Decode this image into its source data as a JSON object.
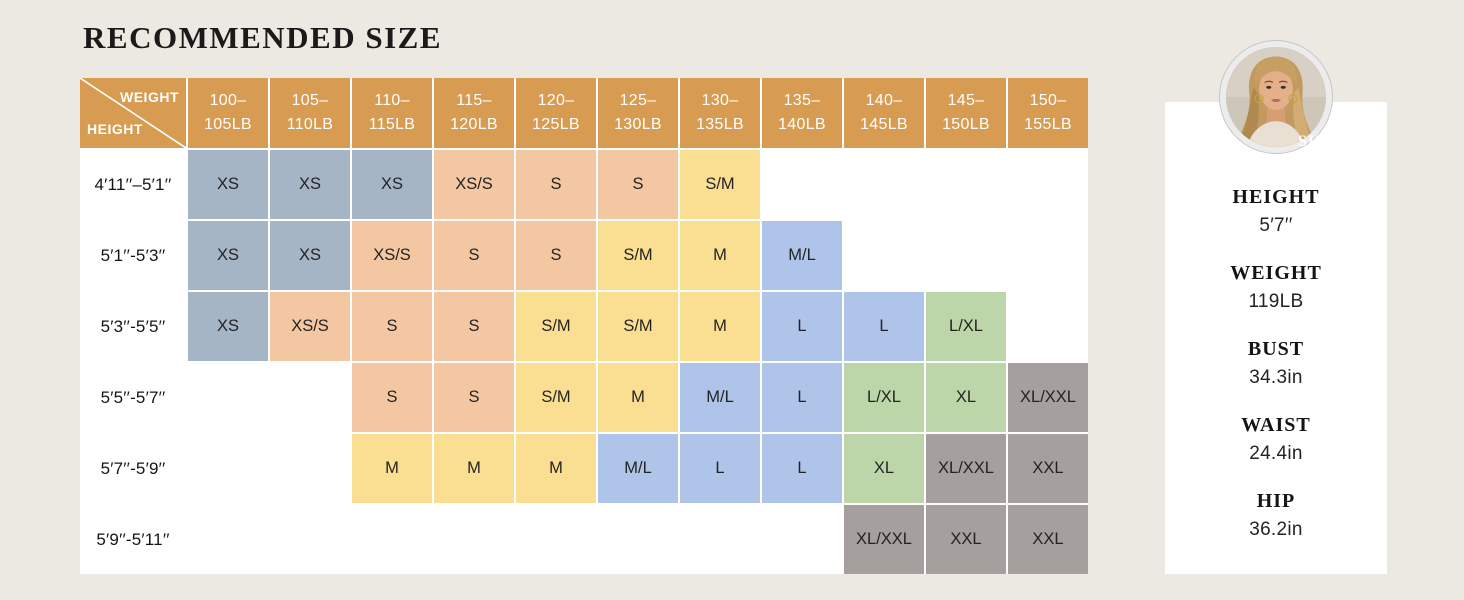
{
  "page_title": "RECOMMENDED SIZE",
  "chart_data": {
    "type": "heatmap",
    "title": "RECOMMENDED SIZE",
    "x_axis_label": "WEIGHT",
    "y_axis_label": "HEIGHT",
    "columns": [
      "100–105LB",
      "105–110LB",
      "110–115LB",
      "115–120LB",
      "120–125LB",
      "125–130LB",
      "130–135LB",
      "135–140LB",
      "140–145LB",
      "145–150LB",
      "150–155LB"
    ],
    "rows": [
      "4′11′′–5′1′′",
      "5′1′′-5′3′′",
      "5′3′′-5′5′′",
      "5′5′′-5′7′′",
      "5′7′′-5′9′′",
      "5′9′′-5′11′′"
    ],
    "values": [
      [
        "XS",
        "XS",
        "XS",
        "XS/S",
        "S",
        "S",
        "S/M",
        null,
        null,
        null,
        null
      ],
      [
        "XS",
        "XS",
        "XS/S",
        "S",
        "S",
        "S/M",
        "M",
        "M/L",
        null,
        null,
        null
      ],
      [
        "XS",
        "XS/S",
        "S",
        "S",
        "S/M",
        "S/M",
        "M",
        "L",
        "L",
        "L/XL",
        null
      ],
      [
        null,
        null,
        "S",
        "S",
        "S/M",
        "M",
        "M/L",
        "L",
        "L/XL",
        "XL",
        "XL/XXL"
      ],
      [
        null,
        null,
        "M",
        "M",
        "M",
        "M/L",
        "L",
        "L",
        "XL",
        "XL/XXL",
        "XXL"
      ],
      [
        null,
        null,
        null,
        null,
        null,
        null,
        null,
        null,
        "XL/XXL",
        "XXL",
        "XXL"
      ]
    ],
    "size_color_map": {
      "XS": "bluegray",
      "XS/S": "peach",
      "S": "peach",
      "S/M": "yellow",
      "M": "yellow",
      "M/L": "periwinkle",
      "L": "periwinkle",
      "L/XL": "green",
      "XL": "green",
      "XL/XXL": "gray",
      "XXL": "gray"
    },
    "grid": false,
    "legend_position": "none"
  },
  "colors": {
    "page_bg": "#ECE9E2",
    "card_bg": "#FFFFFF",
    "header_tan": "#D79B51",
    "bluegray": "#A6B5C6",
    "peach": "#F4C7A3",
    "yellow": "#FADE92",
    "periwinkle": "#AFC4E9",
    "green": "#BCD6AA",
    "gray": "#A5A09D",
    "badge_bg": "#0C0C0C"
  },
  "model_info": {
    "badge": "SIZE:S",
    "measurements": [
      {
        "label": "HEIGHT",
        "value": "5′7′′"
      },
      {
        "label": "WEIGHT",
        "value": "119LB"
      },
      {
        "label": "BUST",
        "value": "34.3in"
      },
      {
        "label": "WAIST",
        "value": "24.4in"
      },
      {
        "label": "HIP",
        "value": "36.2in"
      }
    ]
  }
}
